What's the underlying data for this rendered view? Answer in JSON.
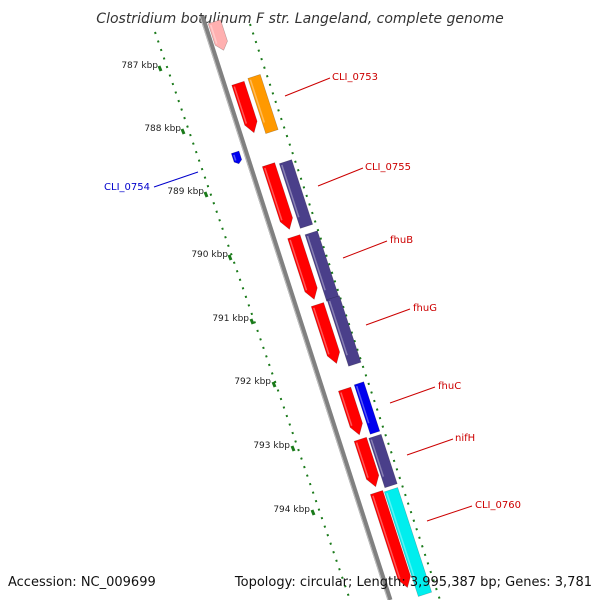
{
  "title": "Clostridium botulinum F str. Langeland, complete genome",
  "footer": {
    "accession": "Accession: NC_009699",
    "summary": "Topology: circular; Length: 3,995,387 bp; Genes: 3,781"
  },
  "ticks": [
    {
      "label": "787 kbp",
      "value": 787
    },
    {
      "label": "788 kbp",
      "value": 788
    },
    {
      "label": "789 kbp",
      "value": 789
    },
    {
      "label": "790 kbp",
      "value": 790
    },
    {
      "label": "791 kbp",
      "value": 791
    },
    {
      "label": "792 kbp",
      "value": 792
    },
    {
      "label": "793 kbp",
      "value": 793
    },
    {
      "label": "794 kbp",
      "value": 794
    }
  ],
  "gene_labels": [
    {
      "name": "CLI_0753",
      "color": "#cc0000"
    },
    {
      "name": "CLI_0754",
      "color": "#0000cc"
    },
    {
      "name": "CLI_0755",
      "color": "#cc0000"
    },
    {
      "name": "fhuB",
      "color": "#cc0000"
    },
    {
      "name": "fhuG",
      "color": "#cc0000"
    },
    {
      "name": "fhuC",
      "color": "#cc0000"
    },
    {
      "name": "nifH",
      "color": "#cc0000"
    },
    {
      "name": "CLI_0760",
      "color": "#cc0000"
    }
  ],
  "colors": {
    "backbone": "#808080",
    "cds_red": "#ff0000",
    "cds_pink": "#ffb0b0",
    "cds_orange": "#ff9900",
    "cds_purple": "#4a3f8a",
    "cds_blue": "#0000ee",
    "cds_cyan": "#00eeee",
    "tick_green": "#1a7a1a"
  }
}
